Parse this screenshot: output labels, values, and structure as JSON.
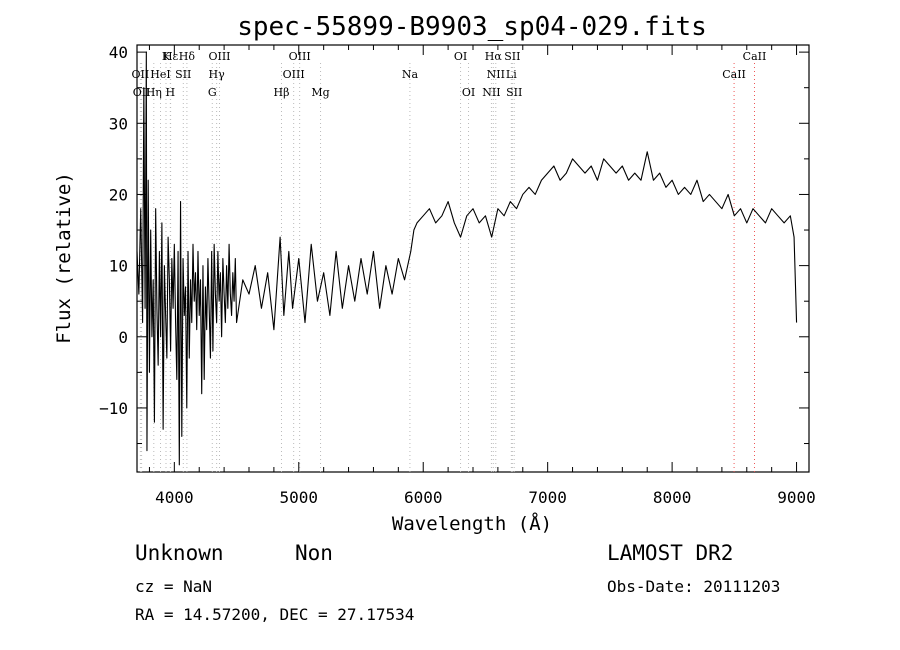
{
  "chart_data": {
    "type": "line",
    "title": "spec-55899-B9903_sp04-029.fits",
    "xlabel": "Wavelength (Å)",
    "ylabel": "Flux (relative)",
    "xlim": [
      3700,
      9100
    ],
    "ylim": [
      -19,
      41
    ],
    "x_ticks": [
      4000,
      5000,
      6000,
      7000,
      8000,
      9000
    ],
    "y_ticks": [
      -10,
      0,
      10,
      20,
      30,
      40
    ],
    "grid": false,
    "series": [
      {
        "points": [
          [
            3700,
            12
          ],
          [
            3715,
            6
          ],
          [
            3730,
            18
          ],
          [
            3745,
            2
          ],
          [
            3755,
            35
          ],
          [
            3765,
            4
          ],
          [
            3775,
            40
          ],
          [
            3780,
            -16
          ],
          [
            3790,
            22
          ],
          [
            3800,
            -5
          ],
          [
            3810,
            15
          ],
          [
            3820,
            0
          ],
          [
            3830,
            8
          ],
          [
            3840,
            -12
          ],
          [
            3850,
            18
          ],
          [
            3860,
            4
          ],
          [
            3870,
            -4
          ],
          [
            3880,
            12
          ],
          [
            3890,
            0
          ],
          [
            3900,
            16
          ],
          [
            3910,
            -13
          ],
          [
            3920,
            10
          ],
          [
            3930,
            3
          ],
          [
            3940,
            -3
          ],
          [
            3950,
            14
          ],
          [
            3960,
            8
          ],
          [
            3970,
            -2
          ],
          [
            3980,
            11
          ],
          [
            3990,
            4
          ],
          [
            4000,
            13
          ],
          [
            4010,
            2
          ],
          [
            4020,
            -6
          ],
          [
            4030,
            12
          ],
          [
            4040,
            -18
          ],
          [
            4050,
            19
          ],
          [
            4060,
            -14
          ],
          [
            4070,
            11
          ],
          [
            4080,
            3
          ],
          [
            4090,
            7
          ],
          [
            4100,
            -10
          ],
          [
            4110,
            12
          ],
          [
            4120,
            -3
          ],
          [
            4130,
            8
          ],
          [
            4140,
            2
          ],
          [
            4150,
            13
          ],
          [
            4160,
            5
          ],
          [
            4170,
            9
          ],
          [
            4180,
            1
          ],
          [
            4190,
            12
          ],
          [
            4200,
            3
          ],
          [
            4210,
            8
          ],
          [
            4220,
            -8
          ],
          [
            4230,
            10
          ],
          [
            4240,
            -6
          ],
          [
            4250,
            7
          ],
          [
            4260,
            1
          ],
          [
            4270,
            11
          ],
          [
            4280,
            4
          ],
          [
            4290,
            -3
          ],
          [
            4300,
            12
          ],
          [
            4310,
            -2
          ],
          [
            4320,
            13
          ],
          [
            4330,
            6
          ],
          [
            4340,
            2
          ],
          [
            4350,
            12
          ],
          [
            4360,
            5
          ],
          [
            4370,
            9
          ],
          [
            4380,
            0
          ],
          [
            4390,
            11
          ],
          [
            4400,
            6
          ],
          [
            4410,
            2
          ],
          [
            4420,
            10
          ],
          [
            4430,
            4
          ],
          [
            4440,
            13
          ],
          [
            4450,
            6
          ],
          [
            4460,
            3
          ],
          [
            4470,
            9
          ],
          [
            4480,
            5
          ],
          [
            4490,
            11
          ],
          [
            4500,
            2
          ],
          [
            4550,
            8
          ],
          [
            4600,
            6
          ],
          [
            4650,
            10
          ],
          [
            4700,
            4
          ],
          [
            4750,
            9
          ],
          [
            4800,
            1
          ],
          [
            4850,
            14
          ],
          [
            4880,
            3
          ],
          [
            4920,
            12
          ],
          [
            4950,
            4
          ],
          [
            5000,
            11
          ],
          [
            5050,
            2
          ],
          [
            5100,
            13
          ],
          [
            5150,
            5
          ],
          [
            5200,
            9
          ],
          [
            5250,
            3
          ],
          [
            5300,
            12
          ],
          [
            5350,
            4
          ],
          [
            5400,
            10
          ],
          [
            5450,
            5
          ],
          [
            5500,
            11
          ],
          [
            5550,
            6
          ],
          [
            5600,
            12
          ],
          [
            5650,
            4
          ],
          [
            5700,
            10
          ],
          [
            5750,
            6
          ],
          [
            5800,
            11
          ],
          [
            5850,
            8
          ],
          [
            5900,
            12
          ],
          [
            5925,
            15
          ],
          [
            5950,
            16
          ],
          [
            6000,
            17
          ],
          [
            6050,
            18
          ],
          [
            6100,
            16
          ],
          [
            6150,
            17
          ],
          [
            6200,
            19
          ],
          [
            6250,
            16
          ],
          [
            6300,
            14
          ],
          [
            6350,
            17
          ],
          [
            6400,
            18
          ],
          [
            6450,
            16
          ],
          [
            6500,
            17
          ],
          [
            6550,
            14
          ],
          [
            6600,
            18
          ],
          [
            6650,
            17
          ],
          [
            6700,
            19
          ],
          [
            6750,
            18
          ],
          [
            6800,
            20
          ],
          [
            6850,
            21
          ],
          [
            6900,
            20
          ],
          [
            6950,
            22
          ],
          [
            7000,
            23
          ],
          [
            7050,
            24
          ],
          [
            7100,
            22
          ],
          [
            7150,
            23
          ],
          [
            7200,
            25
          ],
          [
            7250,
            24
          ],
          [
            7300,
            23
          ],
          [
            7350,
            24
          ],
          [
            7400,
            22
          ],
          [
            7450,
            25
          ],
          [
            7500,
            24
          ],
          [
            7550,
            23
          ],
          [
            7600,
            24
          ],
          [
            7650,
            22
          ],
          [
            7700,
            23
          ],
          [
            7750,
            22
          ],
          [
            7800,
            26
          ],
          [
            7850,
            22
          ],
          [
            7900,
            23
          ],
          [
            7950,
            21
          ],
          [
            8000,
            22
          ],
          [
            8050,
            20
          ],
          [
            8100,
            21
          ],
          [
            8150,
            20
          ],
          [
            8200,
            22
          ],
          [
            8250,
            19
          ],
          [
            8300,
            20
          ],
          [
            8350,
            19
          ],
          [
            8400,
            18
          ],
          [
            8450,
            20
          ],
          [
            8500,
            17
          ],
          [
            8550,
            18
          ],
          [
            8600,
            16
          ],
          [
            8650,
            18
          ],
          [
            8700,
            17
          ],
          [
            8750,
            16
          ],
          [
            8800,
            18
          ],
          [
            8850,
            17
          ],
          [
            8900,
            16
          ],
          [
            8950,
            17
          ],
          [
            8980,
            14
          ],
          [
            9000,
            2
          ]
        ]
      }
    ],
    "annotations": [
      {
        "label": "Hε",
        "x": 3970,
        "row": 1,
        "line_color": "#bbbbbb",
        "line_style": "dotted"
      },
      {
        "label": "K",
        "x": 3933,
        "row": 1,
        "line_color": "#bbbbbb",
        "line_style": "dotted"
      },
      {
        "label": "Hδ",
        "x": 4101,
        "row": 1,
        "line_color": "#bbbbbb",
        "line_style": "dotted"
      },
      {
        "label": "OIII",
        "x": 4363,
        "row": 1,
        "line_color": "#bbbbbb",
        "line_style": "dotted"
      },
      {
        "label": "OIII",
        "x": 5007,
        "row": 1,
        "line_color": "#bbbbbb",
        "line_style": "dotted"
      },
      {
        "label": "OI",
        "x": 6300,
        "row": 1,
        "line_color": "#bbbbbb",
        "line_style": "dotted"
      },
      {
        "label": "Hα",
        "x": 6563,
        "row": 1,
        "line_color": "#bbbbbb",
        "line_style": "dotted"
      },
      {
        "label": "SII",
        "x": 6716,
        "row": 1,
        "line_color": "#bbbbbb",
        "line_style": "dotted"
      },
      {
        "label": "CaII",
        "x": 8662,
        "row": 1,
        "line_color": "#ee5555",
        "line_style": "dotted"
      },
      {
        "label": "OII",
        "x": 3727,
        "row": 2,
        "line_color": "#bbbbbb",
        "line_style": "dotted"
      },
      {
        "label": "HeI",
        "x": 3889,
        "row": 2,
        "line_color": "#bbbbbb",
        "line_style": "dotted"
      },
      {
        "label": "SII",
        "x": 4072,
        "row": 2,
        "line_color": "#bbbbbb",
        "line_style": "dotted"
      },
      {
        "label": "Hγ",
        "x": 4340,
        "row": 2,
        "line_color": "#bbbbbb",
        "line_style": "dotted"
      },
      {
        "label": "OIII",
        "x": 4959,
        "row": 2,
        "line_color": "#bbbbbb",
        "line_style": "dotted"
      },
      {
        "label": "Na",
        "x": 5893,
        "row": 2,
        "line_color": "#bbbbbb",
        "line_style": "dotted"
      },
      {
        "label": "NII",
        "x": 6583,
        "row": 2,
        "line_color": "#bbbbbb",
        "line_style": "dotted"
      },
      {
        "label": "Li",
        "x": 6708,
        "row": 2,
        "line_color": "#bbbbbb",
        "line_style": "dotted"
      },
      {
        "label": "CaII",
        "x": 8498,
        "row": 2,
        "line_color": "#ee5555",
        "line_style": "dotted"
      },
      {
        "label": "OII",
        "x": 3737,
        "row": 3,
        "line_color": "#bbbbbb",
        "line_style": "dotted"
      },
      {
        "label": "Hη",
        "x": 3835,
        "row": 3,
        "line_color": "#bbbbbb",
        "line_style": "dotted"
      },
      {
        "label": "H",
        "x": 3968,
        "row": 3,
        "line_color": "#bbbbbb",
        "line_style": "dotted"
      },
      {
        "label": "G",
        "x": 4305,
        "row": 3,
        "line_color": "#bbbbbb",
        "line_style": "dotted"
      },
      {
        "label": "Hβ",
        "x": 4861,
        "row": 3,
        "line_color": "#bbbbbb",
        "line_style": "dotted"
      },
      {
        "label": "Mg",
        "x": 5175,
        "row": 3,
        "line_color": "#bbbbbb",
        "line_style": "dotted"
      },
      {
        "label": "OI",
        "x": 6364,
        "row": 3,
        "line_color": "#bbbbbb",
        "line_style": "dotted"
      },
      {
        "label": "NII",
        "x": 6548,
        "row": 3,
        "line_color": "#bbbbbb",
        "line_style": "dotted"
      },
      {
        "label": "SII",
        "x": 6731,
        "row": 3,
        "line_color": "#bbbbbb",
        "line_style": "dotted"
      }
    ]
  },
  "footer": {
    "object_type": "Unknown",
    "object_subtype": "Non",
    "cz_label": "cz = NaN",
    "coordinates": "RA =  14.57200, DEC =  27.17534",
    "survey": "LAMOST DR2",
    "obs_date": "Obs-Date: 20111203"
  }
}
